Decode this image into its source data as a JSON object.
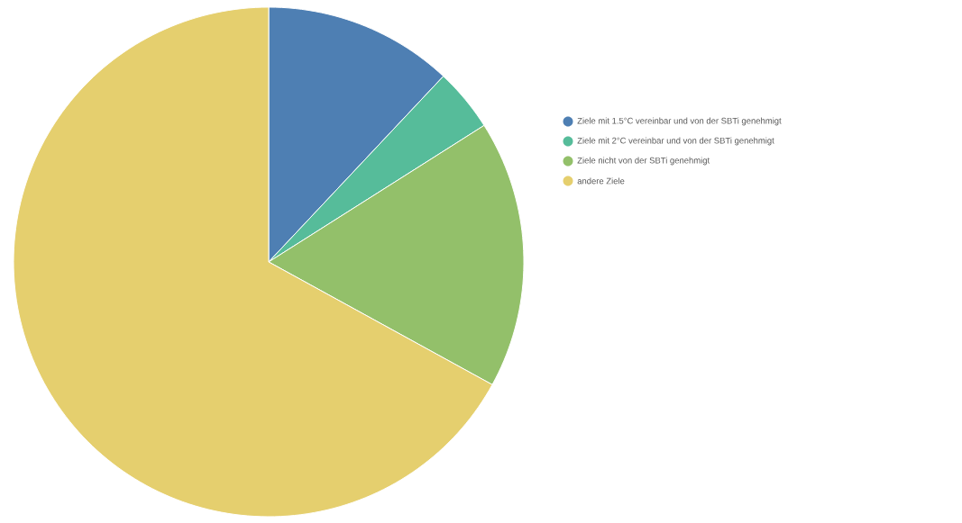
{
  "chart_data": {
    "type": "pie",
    "categories": [
      "Ziele mit 1.5°C vereinbar und von der SBTi genehmigt",
      "Ziele mit 2°C vereinbar und von der SBTi genehmigt",
      "Ziele nicht von der SBTi genehmigt",
      "andere Ziele"
    ],
    "values": [
      12,
      4,
      17,
      67
    ],
    "colors": [
      "#4e7fb3",
      "#56bc9a",
      "#93c06a",
      "#e5cf6e"
    ],
    "legend": "right"
  }
}
